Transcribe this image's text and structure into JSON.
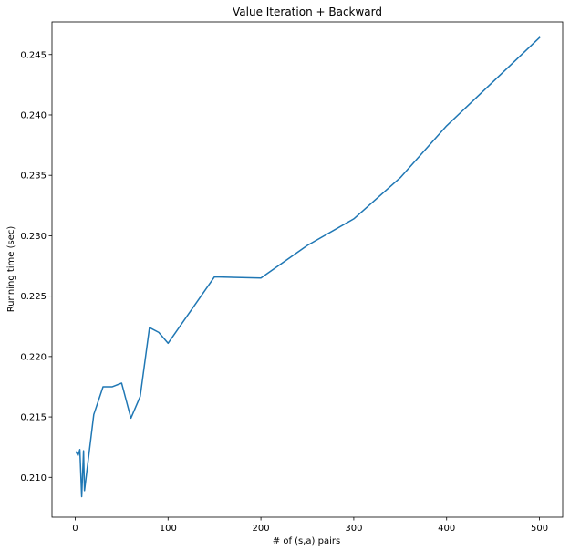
{
  "chart_data": {
    "type": "line",
    "title": "Value Iteration + Backward",
    "xlabel": "# of (s,a) pairs",
    "ylabel": "Running time (sec)",
    "xlim": [
      -25,
      525
    ],
    "ylim": [
      0.2067,
      0.2477
    ],
    "xticks": [
      0,
      100,
      200,
      300,
      400,
      500
    ],
    "yticks": [
      0.21,
      0.215,
      0.22,
      0.225,
      0.23,
      0.235,
      0.24,
      0.245
    ],
    "xtick_labels": [
      "0",
      "100",
      "200",
      "300",
      "400",
      "500"
    ],
    "ytick_labels": [
      "0.210",
      "0.215",
      "0.220",
      "0.225",
      "0.230",
      "0.235",
      "0.240",
      "0.245"
    ],
    "grid": false,
    "series": [
      {
        "color": "#1f77b4",
        "x": [
          1,
          3,
          5,
          7,
          9,
          10,
          20,
          30,
          40,
          50,
          60,
          70,
          80,
          90,
          100,
          150,
          200,
          250,
          300,
          350,
          400,
          500
        ],
        "y": [
          0.2121,
          0.2118,
          0.2123,
          0.2084,
          0.2122,
          0.2089,
          0.2152,
          0.2175,
          0.2175,
          0.2178,
          0.2149,
          0.2167,
          0.2224,
          0.222,
          0.2211,
          0.2266,
          0.2265,
          0.2292,
          0.2314,
          0.2348,
          0.2391,
          0.2464
        ]
      }
    ]
  }
}
